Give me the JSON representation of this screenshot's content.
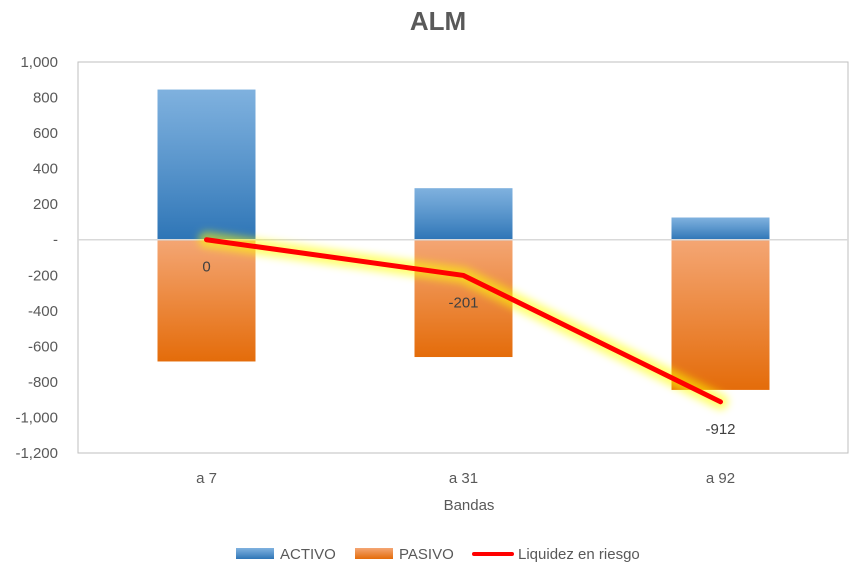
{
  "chart_data": {
    "type": "bar",
    "title": "ALM",
    "xlabel": "Bandas",
    "ylabel": "",
    "categories": [
      "a 7",
      "a 31",
      "a 92"
    ],
    "ylim": [
      -1200,
      1000
    ],
    "yticks": [
      1000,
      800,
      600,
      400,
      200,
      0,
      -200,
      -400,
      -600,
      -800,
      -1000,
      -1200
    ],
    "ytick_labels": [
      "1,000",
      "800",
      "600",
      "400",
      "200",
      "-",
      "-200",
      "-400",
      "-600",
      "-800",
      "-1,000",
      "-1,200"
    ],
    "grid": false,
    "legend_position": "bottom",
    "series": [
      {
        "name": "ACTIVO",
        "kind": "bar",
        "color": "#5B9BD5",
        "values": [
          845,
          290,
          125
        ]
      },
      {
        "name": "PASIVO",
        "kind": "bar",
        "color": "#ED7D31",
        "values": [
          -685,
          -660,
          -845
        ]
      },
      {
        "name": "Liquidez en riesgo",
        "kind": "line",
        "color": "#FF0000",
        "glow": "#FFFF00",
        "values": [
          0,
          -201,
          -912
        ],
        "labels": [
          "0",
          "-201",
          "-912"
        ]
      }
    ]
  }
}
